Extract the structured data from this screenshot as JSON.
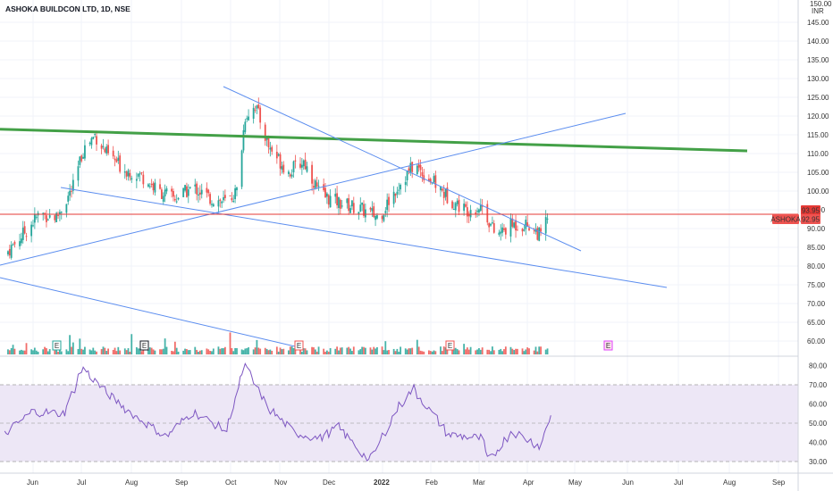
{
  "title": "ASHOKA BUILDCON LTD, 1D, NSE",
  "price_scale": {
    "unit_line1": "150.00",
    "unit_line2": "INR",
    "ticks": [
      145,
      140,
      135,
      130,
      125,
      120,
      115,
      110,
      105,
      100,
      95,
      90,
      85,
      80,
      75,
      70,
      65,
      60
    ],
    "range": [
      59,
      150
    ]
  },
  "rsi_scale": {
    "ticks": [
      80,
      70,
      60,
      50,
      40,
      30
    ],
    "range": [
      26,
      82
    ],
    "upper_band": 70,
    "middle_band": 50,
    "lower_band": 30
  },
  "time_axis": {
    "labels": [
      "Jun",
      "Jul",
      "Aug",
      "Sep",
      "Oct",
      "Nov",
      "Dec",
      "2022",
      "Feb",
      "Mar",
      "Apr",
      "May",
      "Jun",
      "Jul",
      "Aug",
      "Sep"
    ],
    "bold": [
      "2022"
    ]
  },
  "price_labels": {
    "high": "93.95",
    "symbol": "ASHOKA",
    "last": "92.95"
  },
  "colors": {
    "up": "#26a69a",
    "down": "#ef5350",
    "trend_green": "#43a047",
    "trend_blue": "#5b8def",
    "price_line": "#e53935",
    "rsi_line": "#7e57c2",
    "rsi_band": "#ede7f6",
    "earnings_marker": "#555555",
    "earnings_future": "#e040fb"
  },
  "earnings_markers": [
    {
      "label": "E",
      "kind": "up"
    },
    {
      "label": "E",
      "kind": "neutral"
    },
    {
      "label": "E",
      "kind": "down"
    },
    {
      "label": "E",
      "kind": "down"
    },
    {
      "label": "E",
      "kind": "future"
    }
  ],
  "chart_data": {
    "type": "candlestick",
    "title": "ASHOKA BUILDCON LTD, 1D, NSE",
    "x_range": [
      "2021-06",
      "2022-09"
    ],
    "y_unit": "INR",
    "ylim": [
      59,
      150
    ],
    "last_price": 92.95,
    "high_label": 93.95,
    "price_path": [
      [
        "2021-05-15",
        83
      ],
      [
        "2021-05-25",
        88
      ],
      [
        "2021-06-05",
        94
      ],
      [
        "2021-06-15",
        93
      ],
      [
        "2021-06-25",
        101
      ],
      [
        "2021-07-01",
        111
      ],
      [
        "2021-07-08",
        115
      ],
      [
        "2021-07-15",
        110
      ],
      [
        "2021-07-25",
        106
      ],
      [
        "2021-08-05",
        104
      ],
      [
        "2021-08-15",
        100
      ],
      [
        "2021-08-25",
        98
      ],
      [
        "2021-09-05",
        101
      ],
      [
        "2021-09-15",
        98
      ],
      [
        "2021-09-25",
        97
      ],
      [
        "2021-10-01",
        100
      ],
      [
        "2021-10-06",
        120
      ],
      [
        "2021-10-12",
        123
      ],
      [
        "2021-10-20",
        112
      ],
      [
        "2021-11-01",
        105
      ],
      [
        "2021-11-10",
        108
      ],
      [
        "2021-11-20",
        99
      ],
      [
        "2021-12-01",
        97
      ],
      [
        "2021-12-15",
        95
      ],
      [
        "2021-12-25",
        93
      ],
      [
        "2022-01-05",
        101
      ],
      [
        "2022-01-15",
        107
      ],
      [
        "2022-01-25",
        103
      ],
      [
        "2022-02-05",
        98
      ],
      [
        "2022-02-15",
        95
      ],
      [
        "2022-02-25",
        96
      ],
      [
        "2022-03-05",
        88
      ],
      [
        "2022-03-15",
        91
      ],
      [
        "2022-03-25",
        91
      ],
      [
        "2022-04-01",
        88
      ],
      [
        "2022-04-05",
        93
      ]
    ],
    "rsi_path": [
      [
        "2021-05-15",
        44
      ],
      [
        "2021-06-01",
        56
      ],
      [
        "2021-06-20",
        55
      ],
      [
        "2021-07-01",
        79
      ],
      [
        "2021-07-15",
        66
      ],
      [
        "2021-08-01",
        54
      ],
      [
        "2021-08-20",
        43
      ],
      [
        "2021-09-05",
        56
      ],
      [
        "2021-09-25",
        46
      ],
      [
        "2021-10-06",
        80
      ],
      [
        "2021-10-20",
        58
      ],
      [
        "2021-11-05",
        45
      ],
      [
        "2021-11-20",
        42
      ],
      [
        "2021-12-01",
        48
      ],
      [
        "2021-12-20",
        30
      ],
      [
        "2022-01-05",
        57
      ],
      [
        "2022-01-15",
        68
      ],
      [
        "2022-02-05",
        44
      ],
      [
        "2022-02-25",
        42
      ],
      [
        "2022-03-01",
        30
      ],
      [
        "2022-03-15",
        46
      ],
      [
        "2022-04-01",
        38
      ],
      [
        "2022-04-08",
        56
      ]
    ],
    "rsi_bands": [
      30,
      50,
      70
    ],
    "trendlines": [
      {
        "color": "green",
        "from": [
          "2021-05-01",
          116.5
        ],
        "to": [
          "2022-07-30",
          111
        ]
      },
      {
        "color": "blue",
        "from": [
          "2021-09-20",
          128
        ],
        "to": [
          "2022-05-01",
          84.5
        ]
      },
      {
        "color": "blue",
        "from": [
          "2021-05-01",
          83
        ],
        "to": [
          "2022-05-25",
          120.5
        ]
      },
      {
        "color": "blue",
        "from": [
          "2021-06-30",
          101.5
        ],
        "to": [
          "2022-06-20",
          75
        ]
      },
      {
        "color": "blue",
        "from": [
          "2021-05-01",
          78
        ],
        "to": [
          "2021-11-15",
          59
        ]
      }
    ],
    "horizontal_line": 93.95
  }
}
